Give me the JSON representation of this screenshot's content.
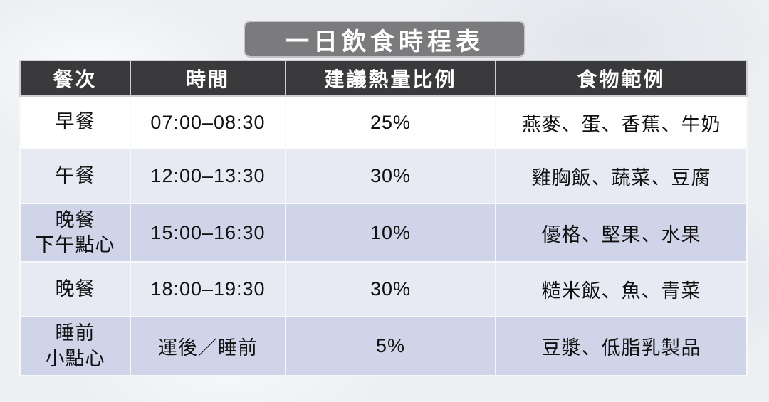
{
  "title": {
    "text": "一日飲食時程表",
    "badge_bg": "#7b7b7d",
    "text_color": "#ffffff"
  },
  "table": {
    "headers": [
      "餐次",
      "時間",
      "建議熱量比例",
      "食物範例"
    ],
    "rows": [
      {
        "meal": "早餐",
        "time": "07:00–08:30",
        "ratio": "25%",
        "foods": "燕麥、蛋、香蕉、牛奶"
      },
      {
        "meal": "午餐",
        "time": "12:00–13:30",
        "ratio": "30%",
        "foods": "雞胸飯、蔬菜、豆腐"
      },
      {
        "meal": "晚餐\n下午點心",
        "time": "15:00–16:30",
        "ratio": "10%",
        "foods": "優格、堅果、水果"
      },
      {
        "meal": "晚餐",
        "time": "18:00–19:30",
        "ratio": "30%",
        "foods": "糙米飯、魚、青菜"
      },
      {
        "meal": "睡前\n小點心",
        "time": "運後／睡前",
        "ratio": "5%",
        "foods": "豆漿、低脂乳製品"
      }
    ],
    "colors": {
      "header_bg": "#3a3a3c",
      "header_text": "#ffffff",
      "row_bg": [
        "#ffffff",
        "#e8eaf3",
        "#d0d4e8",
        "#e8eaf3",
        "#d0d4e8"
      ],
      "body_text": "#111111",
      "divider": "#f7f8fb"
    }
  }
}
